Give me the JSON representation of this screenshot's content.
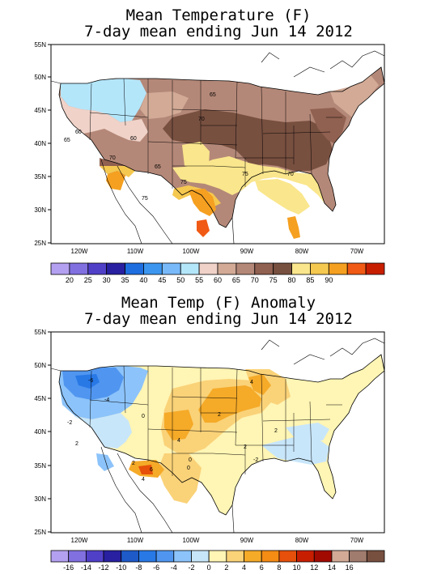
{
  "panels": [
    {
      "title1": "Mean Temperature (F)",
      "title2": "7-day mean ending Jun 14 2012",
      "lat_labels": [
        "55N",
        "50N",
        "45N",
        "40N",
        "35N",
        "30N",
        "25N"
      ],
      "lon_labels": [
        "120W",
        "110W",
        "100W",
        "90W",
        "80W",
        "70W"
      ],
      "contour_labels": [
        "65",
        "70",
        "75",
        "70",
        "65",
        "60",
        "70",
        "75",
        "60",
        "65",
        "75"
      ],
      "legend_labels": [
        "20",
        "25",
        "30",
        "35",
        "40",
        "45",
        "50",
        "55",
        "60",
        "65",
        "70",
        "75",
        "80",
        "85",
        "90"
      ],
      "legend_colors": [
        "#b4a0f0",
        "#8070e0",
        "#5040c8",
        "#2820a0",
        "#1e6ee0",
        "#3c96f0",
        "#78b9fa",
        "#b4e6fa",
        "#f0d2c8",
        "#d2aa96",
        "#b48878",
        "#906050",
        "#785040",
        "#fae68c",
        "#f5c850",
        "#f5a020",
        "#f05a14",
        "#c81e00"
      ]
    },
    {
      "title1": "Mean Temp (F) Anomaly",
      "title2": "7-day mean ending Jun 14 2012",
      "lat_labels": [
        "55N",
        "50N",
        "45N",
        "40N",
        "35N",
        "30N",
        "25N"
      ],
      "lon_labels": [
        "120W",
        "110W",
        "100W",
        "90W",
        "80W",
        "70W"
      ],
      "contour_labels": [
        "-6",
        "-4",
        "-2",
        "0",
        "2",
        "4",
        "2",
        "0",
        "2",
        "4",
        "6",
        "2",
        "4",
        "-2",
        "2",
        "0"
      ],
      "legend_labels": [
        "-16",
        "-14",
        "-12",
        "-10",
        "-8",
        "-6",
        "-4",
        "-2",
        "0",
        "2",
        "4",
        "6",
        "8",
        "10",
        "12",
        "14",
        "16"
      ],
      "legend_colors": [
        "#b4a0f0",
        "#8070e0",
        "#5040c8",
        "#2820a0",
        "#1e5ac8",
        "#2878e6",
        "#5096f0",
        "#8cc3fa",
        "#c8e6fa",
        "#fff5b4",
        "#fad278",
        "#f5aa28",
        "#f58c14",
        "#e6500a",
        "#c81e00",
        "#a00a00",
        "#d2aa96",
        "#a07c6e",
        "#785040"
      ]
    }
  ]
}
